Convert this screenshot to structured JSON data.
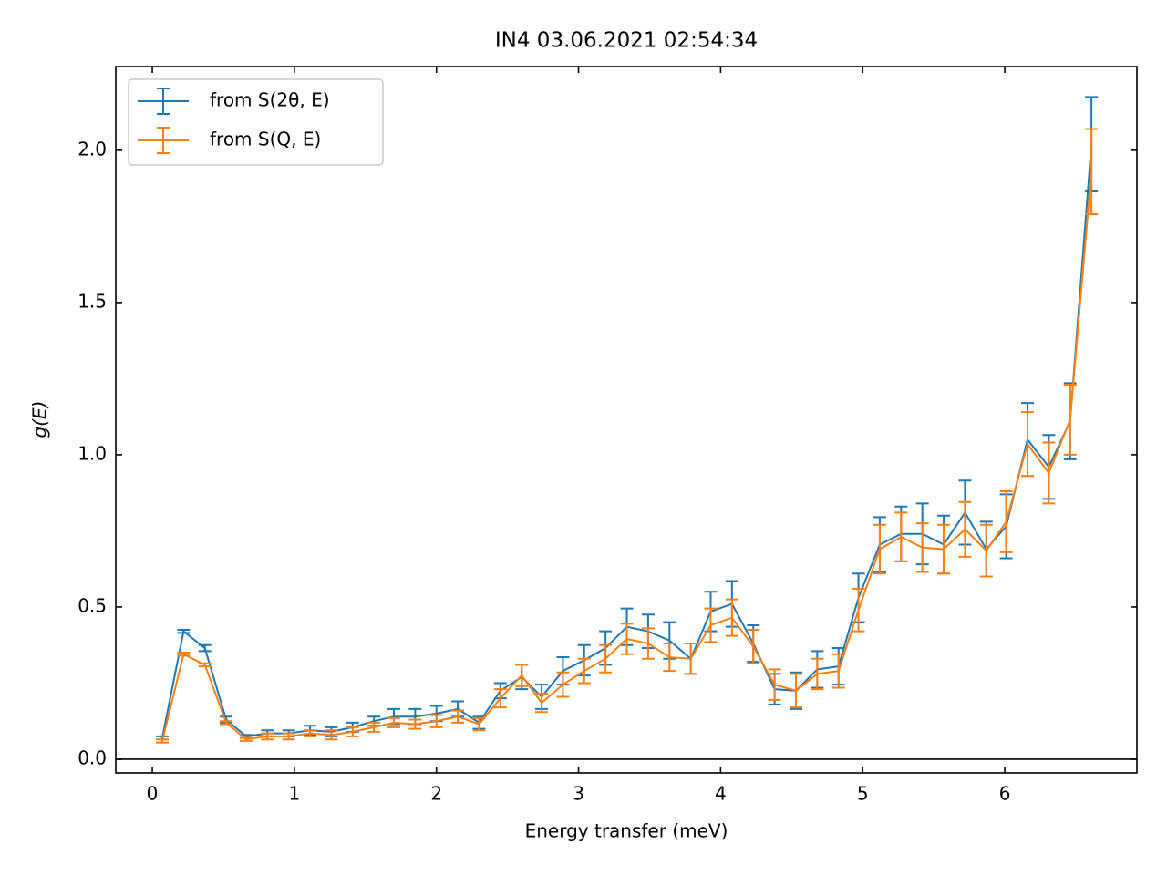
{
  "chart_data": {
    "type": "errorbar",
    "title": "IN4 03.06.2021 02:54:34",
    "xlabel": "Energy transfer (meV)",
    "ylabel": "g(E)",
    "x": [
      0.07,
      0.22,
      0.37,
      0.52,
      0.66,
      0.81,
      0.96,
      1.11,
      1.26,
      1.41,
      1.56,
      1.7,
      1.85,
      2.0,
      2.15,
      2.3,
      2.45,
      2.6,
      2.74,
      2.89,
      3.04,
      3.19,
      3.34,
      3.49,
      3.64,
      3.79,
      3.93,
      4.08,
      4.23,
      4.38,
      4.53,
      4.68,
      4.83,
      4.97,
      5.12,
      5.27,
      5.42,
      5.57,
      5.72,
      5.87,
      6.01,
      6.16,
      6.31,
      6.46,
      6.61
    ],
    "series": [
      {
        "name": "from S(2θ, E)",
        "color": "#1f77b4",
        "values": [
          0.07,
          0.42,
          0.365,
          0.13,
          0.075,
          0.085,
          0.085,
          0.095,
          0.09,
          0.105,
          0.125,
          0.14,
          0.14,
          0.15,
          0.165,
          0.12,
          0.225,
          0.27,
          0.205,
          0.29,
          0.325,
          0.365,
          0.435,
          0.42,
          0.39,
          0.33,
          0.485,
          0.51,
          0.38,
          0.23,
          0.225,
          0.295,
          0.305,
          0.53,
          0.705,
          0.74,
          0.74,
          0.705,
          0.81,
          0.69,
          0.765,
          1.05,
          0.96,
          1.11,
          2.02
        ],
        "errors": [
          0.005,
          0.005,
          0.01,
          0.01,
          0.005,
          0.01,
          0.01,
          0.015,
          0.015,
          0.015,
          0.015,
          0.025,
          0.025,
          0.025,
          0.025,
          0.02,
          0.025,
          0.04,
          0.04,
          0.045,
          0.05,
          0.055,
          0.06,
          0.055,
          0.06,
          0.05,
          0.065,
          0.075,
          0.06,
          0.05,
          0.06,
          0.06,
          0.06,
          0.08,
          0.09,
          0.09,
          0.1,
          0.095,
          0.105,
          0.09,
          0.105,
          0.12,
          0.105,
          0.125,
          0.155
        ]
      },
      {
        "name": "from S(Q, E)",
        "color": "#ff7f0e",
        "values": [
          0.06,
          0.345,
          0.31,
          0.12,
          0.065,
          0.075,
          0.075,
          0.085,
          0.08,
          0.09,
          0.105,
          0.12,
          0.115,
          0.125,
          0.14,
          0.115,
          0.2,
          0.275,
          0.185,
          0.245,
          0.29,
          0.33,
          0.395,
          0.38,
          0.335,
          0.33,
          0.44,
          0.465,
          0.37,
          0.245,
          0.225,
          0.28,
          0.29,
          0.49,
          0.69,
          0.73,
          0.695,
          0.69,
          0.755,
          0.685,
          0.78,
          1.035,
          0.94,
          1.115,
          1.93
        ],
        "errors": [
          0.005,
          0.005,
          0.005,
          0.005,
          0.005,
          0.01,
          0.01,
          0.01,
          0.015,
          0.015,
          0.015,
          0.015,
          0.015,
          0.02,
          0.02,
          0.02,
          0.03,
          0.035,
          0.03,
          0.04,
          0.04,
          0.045,
          0.05,
          0.05,
          0.045,
          0.05,
          0.055,
          0.06,
          0.055,
          0.05,
          0.055,
          0.05,
          0.055,
          0.07,
          0.08,
          0.08,
          0.08,
          0.08,
          0.09,
          0.085,
          0.1,
          0.105,
          0.1,
          0.115,
          0.14
        ]
      }
    ],
    "xlim": [
      -0.257,
      6.93
    ],
    "ylim": [
      -0.045,
      2.275
    ],
    "xticks": [
      0,
      1,
      2,
      3,
      4,
      5,
      6
    ],
    "yticks": [
      {
        "value": 0,
        "label": "0.0"
      },
      0.5,
      {
        "value": 1,
        "label": "1.0"
      },
      1.5,
      {
        "value": 2,
        "label": "2.0"
      }
    ],
    "hline": 0,
    "legend": "upper left",
    "grid": false
  }
}
